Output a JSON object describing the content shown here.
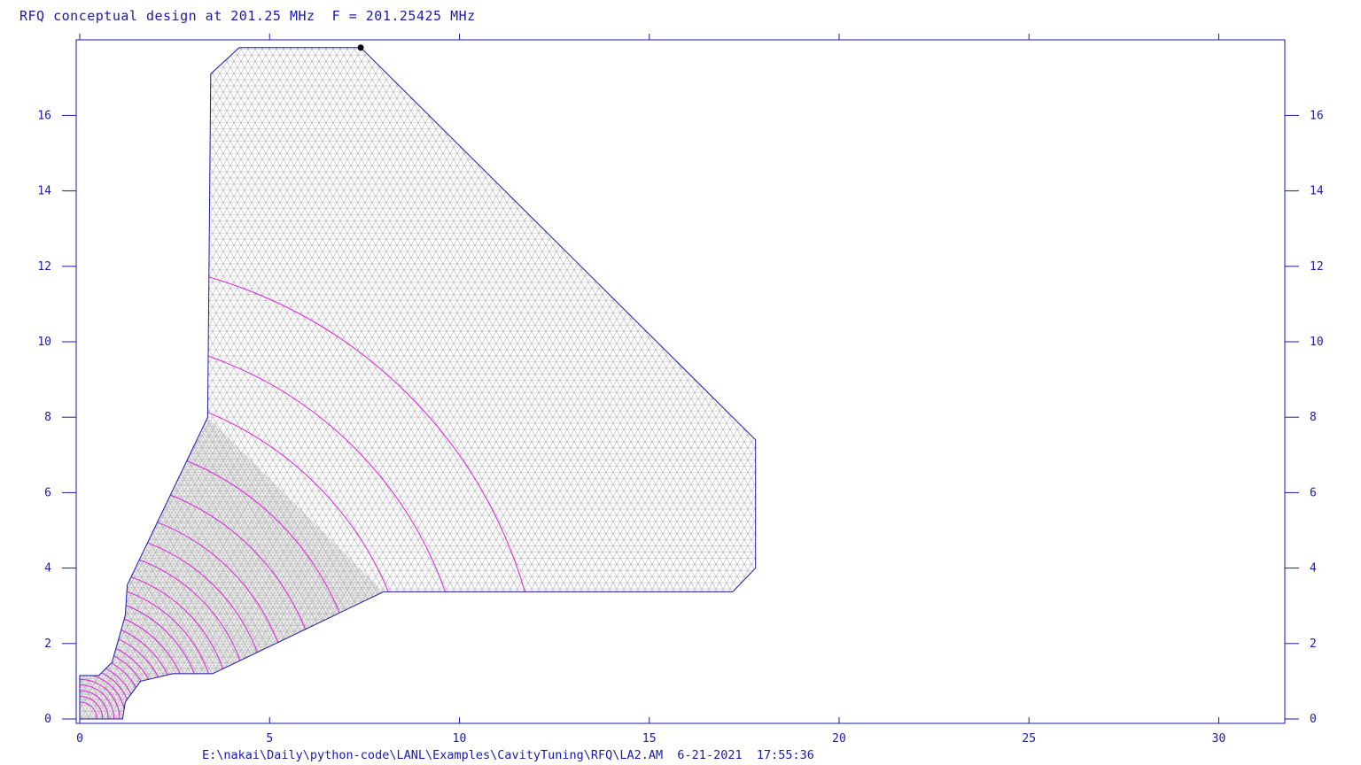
{
  "header": {
    "title": "RFQ conceptual design at 201.25 MHz  F = 201.25425 MHz"
  },
  "footer": {
    "path": "E:\\nakai\\Daily\\python-code\\LANL\\Examples\\CavityTuning\\RFQ\\LA2.AM  6-21-2021  17:55:36"
  },
  "axes": {
    "x_ticks": [
      "0",
      "5",
      "10",
      "15",
      "20",
      "25",
      "30"
    ],
    "y_ticks": [
      "0",
      "2",
      "4",
      "6",
      "8",
      "10",
      "12",
      "14",
      "16"
    ],
    "xlim": [
      0,
      31.8
    ],
    "ylim": [
      0,
      18
    ]
  },
  "colors": {
    "frame": "#1a1aa8",
    "mesh": "#b4b4b4",
    "field_lines": "#e020e0",
    "text": "#1a1aa8"
  },
  "geometry": {
    "outline": [
      [
        0,
        0
      ],
      [
        1.13,
        0
      ],
      [
        1.2,
        0.45
      ],
      [
        1.6,
        1.0
      ],
      [
        2.45,
        1.2
      ],
      [
        3.5,
        1.2
      ],
      [
        8.0,
        3.37
      ],
      [
        17.2,
        3.37
      ],
      [
        17.8,
        4.0
      ],
      [
        17.8,
        7.4
      ],
      [
        7.4,
        17.8
      ],
      [
        4.2,
        17.8
      ],
      [
        3.45,
        17.1
      ],
      [
        3.37,
        8.0
      ],
      [
        1.25,
        3.55
      ],
      [
        1.2,
        2.75
      ],
      [
        0.85,
        1.5
      ],
      [
        0.5,
        1.15
      ],
      [
        0,
        1.15
      ]
    ],
    "marker": [
      7.4,
      17.8
    ],
    "field_line_radii": [
      0.45,
      0.6,
      0.75,
      0.9,
      1.05,
      1.2,
      1.35,
      1.5,
      1.7,
      1.9,
      2.1,
      2.35,
      2.6,
      2.9,
      3.25,
      3.6,
      4.0,
      4.5,
      5.0,
      5.6,
      6.4,
      7.4,
      8.8,
      10.2,
      12.2
    ]
  }
}
